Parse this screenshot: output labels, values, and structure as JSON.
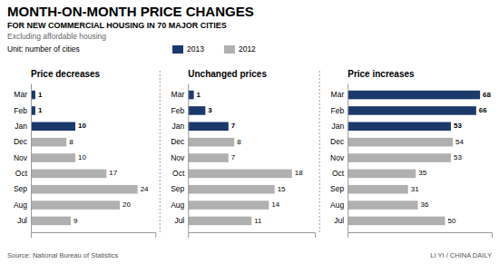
{
  "title": "MONTH-ON-MONTH PRICE CHANGES",
  "subtitle": [
    "FOR NEW COMMERCIAL HOUSING IN 70 MAJOR CITIES",
    "Excluding affordable housing"
  ],
  "annotations": [
    "Unit: number of cities",
    "Source: National Bureau of Statistics",
    "LI YI / CHINA DAILY"
  ],
  "chart_data": [
    {
      "type": "bar",
      "orientation": "horizontal",
      "title": "Price decreases",
      "categories": [
        "Mar",
        "Feb",
        "Jan",
        "Dec",
        "Nov",
        "Oct",
        "Sep",
        "Aug",
        "Jul"
      ],
      "series": [
        {
          "name": "2013",
          "color": "#1b3a6b",
          "values": [
            1,
            1,
            10,
            null,
            null,
            null,
            null,
            null,
            null
          ]
        },
        {
          "name": "2012",
          "color": "#b0b0b0",
          "values": [
            null,
            null,
            null,
            8,
            10,
            17,
            24,
            20,
            9
          ]
        }
      ],
      "xlim": [
        0,
        28
      ],
      "data_labels": true,
      "tick_labels": "y",
      "grid": false
    },
    {
      "type": "bar",
      "orientation": "horizontal",
      "title": "Unchanged prices",
      "categories": [
        "Mar",
        "Feb",
        "Jan",
        "Dec",
        "Nov",
        "Oct",
        "Sep",
        "Aug",
        "Jul"
      ],
      "series": [
        {
          "name": "2013",
          "color": "#1b3a6b",
          "values": [
            1,
            3,
            7,
            null,
            null,
            null,
            null,
            null,
            null
          ]
        },
        {
          "name": "2012",
          "color": "#b0b0b0",
          "values": [
            null,
            null,
            null,
            8,
            7,
            18,
            15,
            14,
            11
          ]
        }
      ],
      "xlim": [
        0,
        22
      ],
      "data_labels": true,
      "tick_labels": "y",
      "grid": false
    },
    {
      "type": "bar",
      "orientation": "horizontal",
      "title": "Price increases",
      "categories": [
        "Mar",
        "Feb",
        "Jan",
        "Dec",
        "Nov",
        "Oct",
        "Sep",
        "Aug",
        "Jul"
      ],
      "series": [
        {
          "name": "2013",
          "color": "#1b3a6b",
          "values": [
            68,
            66,
            53,
            null,
            null,
            null,
            null,
            null,
            null
          ]
        },
        {
          "name": "2012",
          "color": "#b0b0b0",
          "values": [
            null,
            null,
            null,
            54,
            53,
            35,
            31,
            36,
            50
          ]
        }
      ],
      "xlim": [
        0,
        74
      ],
      "data_labels": true,
      "tick_labels": "y",
      "grid": false
    }
  ]
}
